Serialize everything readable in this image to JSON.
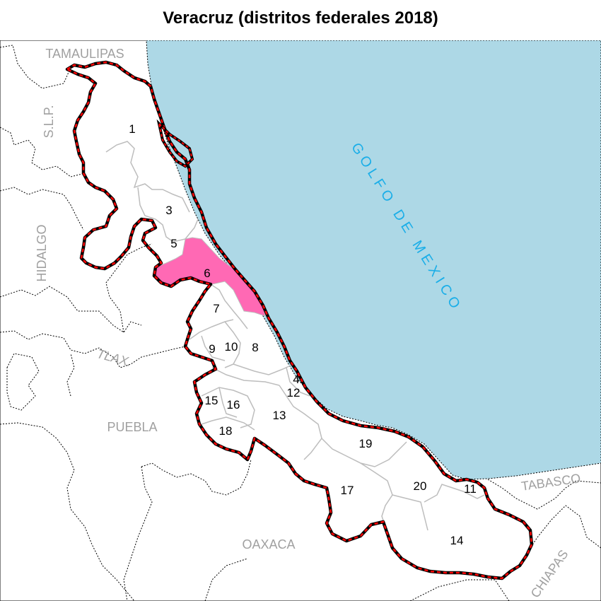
{
  "title": "Veracruz (distritos federales 2018)",
  "colors": {
    "sea": "#add8e6",
    "highlight": "#ff69b4",
    "state_border_outer": "#000000",
    "state_border_inner": "#ff0000",
    "district_border": "#bdbdbd",
    "neighbor_border": "#000000",
    "neighbor_label": "#a0a0a0",
    "sea_label": "#1aaee8"
  },
  "sea_label": "GOLFO DE MEXICO",
  "highlighted_district": "6",
  "neighbor_states": [
    "TAMAULIPAS",
    "S.L.P.",
    "HIDALGO",
    "TLAX.",
    "PUEBLA",
    "OAXACA",
    "TABASCO",
    "CHIAPAS"
  ],
  "districts": [
    "1",
    "3",
    "5",
    "6",
    "7",
    "9",
    "10",
    "8",
    "4",
    "12",
    "15",
    "16",
    "13",
    "18",
    "19",
    "17",
    "20",
    "11",
    "14"
  ]
}
